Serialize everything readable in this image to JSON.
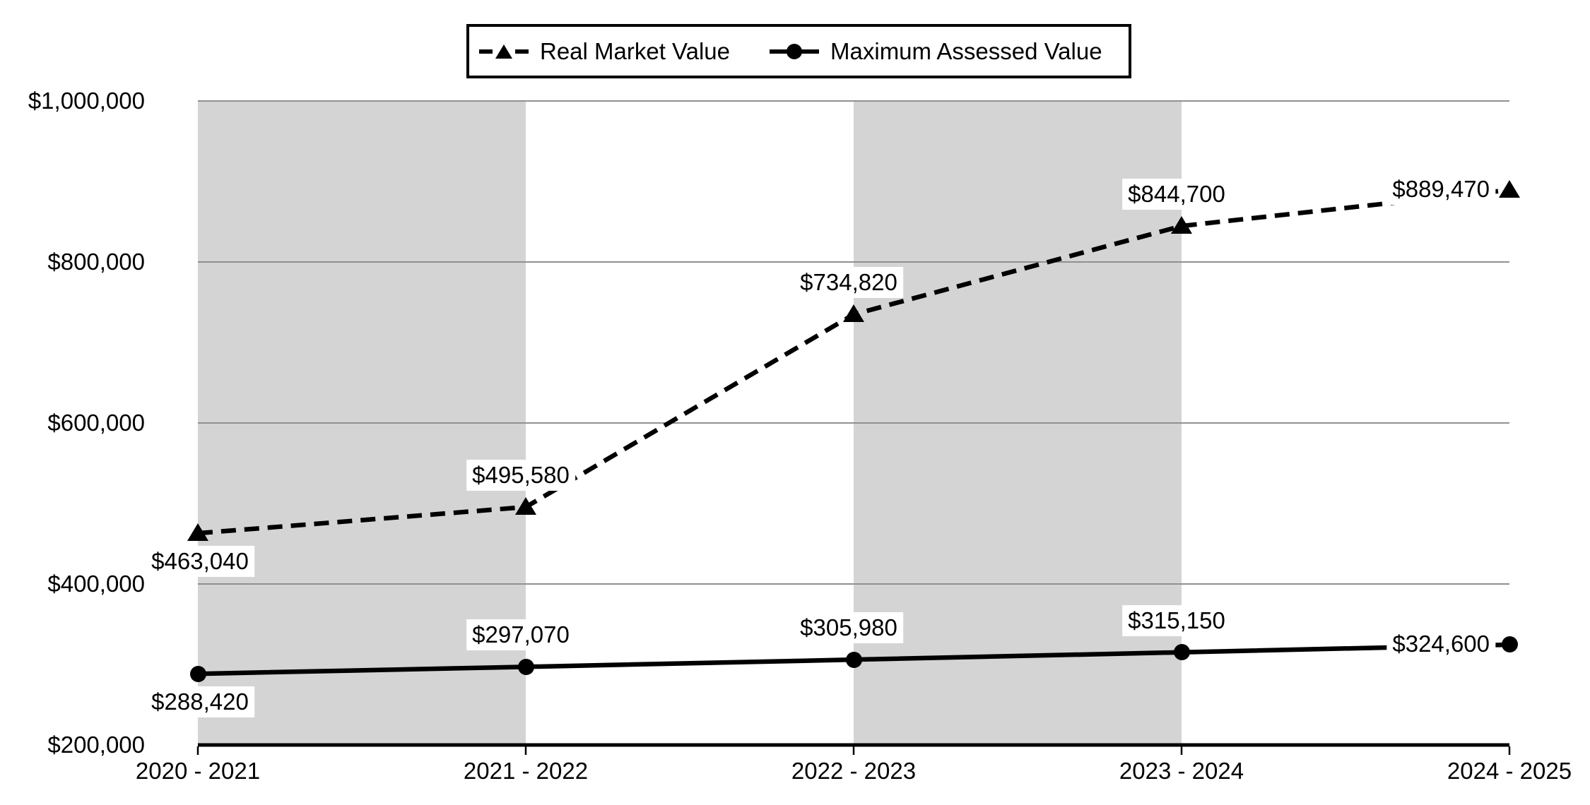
{
  "chart_data": {
    "type": "line",
    "title": "",
    "categories": [
      "2020 - 2021",
      "2021 - 2022",
      "2022 - 2023",
      "2023 - 2024",
      "2024 - 2025"
    ],
    "series": [
      {
        "name": "Real Market Value",
        "line_style": "dashed",
        "marker": "triangle",
        "color": "#000000",
        "values": [
          463040,
          495580,
          734820,
          844700,
          889470
        ],
        "labels": [
          "$463,040",
          "$495,580",
          "$734,820",
          "$844,700",
          "$889,470"
        ],
        "label_pos": [
          "below",
          "above",
          "above",
          "above",
          "left"
        ]
      },
      {
        "name": "Maximum Assessed Value",
        "line_style": "solid",
        "marker": "circle",
        "color": "#000000",
        "values": [
          288420,
          297070,
          305980,
          315150,
          324600
        ],
        "labels": [
          "$288,420",
          "$297,070",
          "$305,980",
          "$315,150",
          "$324,600"
        ],
        "label_pos": [
          "below",
          "above",
          "above",
          "above",
          "left"
        ]
      }
    ],
    "xlabel": "",
    "ylabel": "",
    "y_ticks": [
      "$1,000,000",
      "$800,000",
      "$600,000",
      "$400,000",
      "$200,000"
    ],
    "y_tick_values": [
      1000000,
      800000,
      600000,
      400000,
      200000
    ],
    "ylim": [
      200000,
      1000000
    ],
    "grid": "horizontal",
    "legend_position": "top-center",
    "background_bands": {
      "description": "alternating vertical gray shading between category ticks",
      "shaded_gap_start_indices": [
        0,
        2
      ],
      "color": "#d4d4d4"
    },
    "colors": {
      "line": "#000000",
      "band": "#d4d4d4",
      "gridline": "#909090",
      "axis": "#000000",
      "label_background": "#ffffff",
      "text": "#000000"
    }
  }
}
